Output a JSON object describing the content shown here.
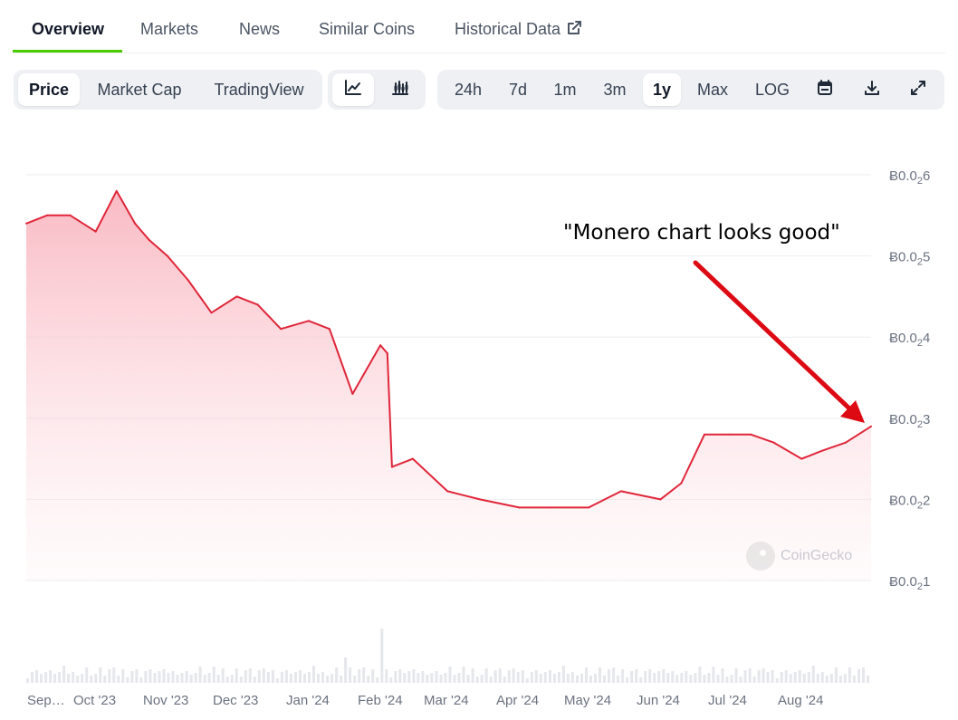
{
  "tabs": [
    {
      "label": "Overview",
      "active": true
    },
    {
      "label": "Markets"
    },
    {
      "label": "News"
    },
    {
      "label": "Similar Coins"
    },
    {
      "label": "Historical Data",
      "icon": "external-link-icon"
    }
  ],
  "chart_types": [
    {
      "label": "Price",
      "active": true
    },
    {
      "label": "Market Cap"
    },
    {
      "label": "TradingView"
    }
  ],
  "chart_styles": [
    {
      "icon": "line-chart-icon",
      "active": true
    },
    {
      "icon": "candlestick-icon"
    }
  ],
  "ranges": [
    {
      "label": "24h"
    },
    {
      "label": "7d"
    },
    {
      "label": "1m"
    },
    {
      "label": "3m"
    },
    {
      "label": "1y",
      "active": true
    },
    {
      "label": "Max"
    },
    {
      "label": "LOG"
    }
  ],
  "tools": [
    {
      "icon": "calendar-icon"
    },
    {
      "icon": "download-icon"
    },
    {
      "icon": "fullscreen-icon"
    }
  ],
  "annotation": "\"Monero chart looks good\"",
  "brand": "CoinGecko",
  "colors": {
    "accent": "#4bcc00",
    "line": "#e0263a",
    "fill": "#f9b6c0",
    "arrow": "#dd0a14"
  },
  "chart_data": {
    "type": "area",
    "currency_symbol": "Ƀ",
    "x": [
      "2023-09-01",
      "2023-09-10",
      "2023-09-20",
      "2023-10-01",
      "2023-10-10",
      "2023-10-18",
      "2023-10-24",
      "2023-11-01",
      "2023-11-10",
      "2023-11-20",
      "2023-12-01",
      "2023-12-10",
      "2023-12-20",
      "2024-01-01",
      "2024-01-10",
      "2024-01-20",
      "2024-02-01",
      "2024-02-04",
      "2024-02-06",
      "2024-02-15",
      "2024-03-01",
      "2024-03-15",
      "2024-04-01",
      "2024-04-15",
      "2024-05-01",
      "2024-05-15",
      "2024-06-01",
      "2024-06-10",
      "2024-06-20",
      "2024-07-01",
      "2024-07-10",
      "2024-07-20",
      "2024-08-01",
      "2024-08-10",
      "2024-08-20",
      "2024-08-31"
    ],
    "y": [
      0.0254,
      0.0255,
      0.0255,
      0.0253,
      0.0258,
      0.0254,
      0.0252,
      0.025,
      0.0247,
      0.0243,
      0.0245,
      0.0244,
      0.0241,
      0.0242,
      0.0241,
      0.0233,
      0.0239,
      0.0238,
      0.0224,
      0.0225,
      0.0221,
      0.022,
      0.0219,
      0.0219,
      0.0219,
      0.0221,
      0.022,
      0.0222,
      0.0228,
      0.0228,
      0.0228,
      0.0227,
      0.0225,
      0.0226,
      0.0227,
      0.0229
    ],
    "y_ticks": [
      {
        "base": "Ƀ0.0",
        "sub": "2",
        "tail": "6"
      },
      {
        "base": "Ƀ0.0",
        "sub": "2",
        "tail": "5"
      },
      {
        "base": "Ƀ0.0",
        "sub": "2",
        "tail": "4"
      },
      {
        "base": "Ƀ0.0",
        "sub": "2",
        "tail": "3"
      },
      {
        "base": "Ƀ0.0",
        "sub": "2",
        "tail": "2"
      },
      {
        "base": "Ƀ0.0",
        "sub": "2",
        "tail": "1"
      }
    ],
    "ylim": [
      0.021,
      0.026
    ],
    "x_ticks": [
      "Sep…",
      "Oct '23",
      "Nov '23",
      "Dec '23",
      "Jan '24",
      "Feb '24",
      "Mar '24",
      "Apr '24",
      "May '24",
      "Jun '24",
      "Jul '24",
      "Aug '24"
    ],
    "grid": true
  }
}
